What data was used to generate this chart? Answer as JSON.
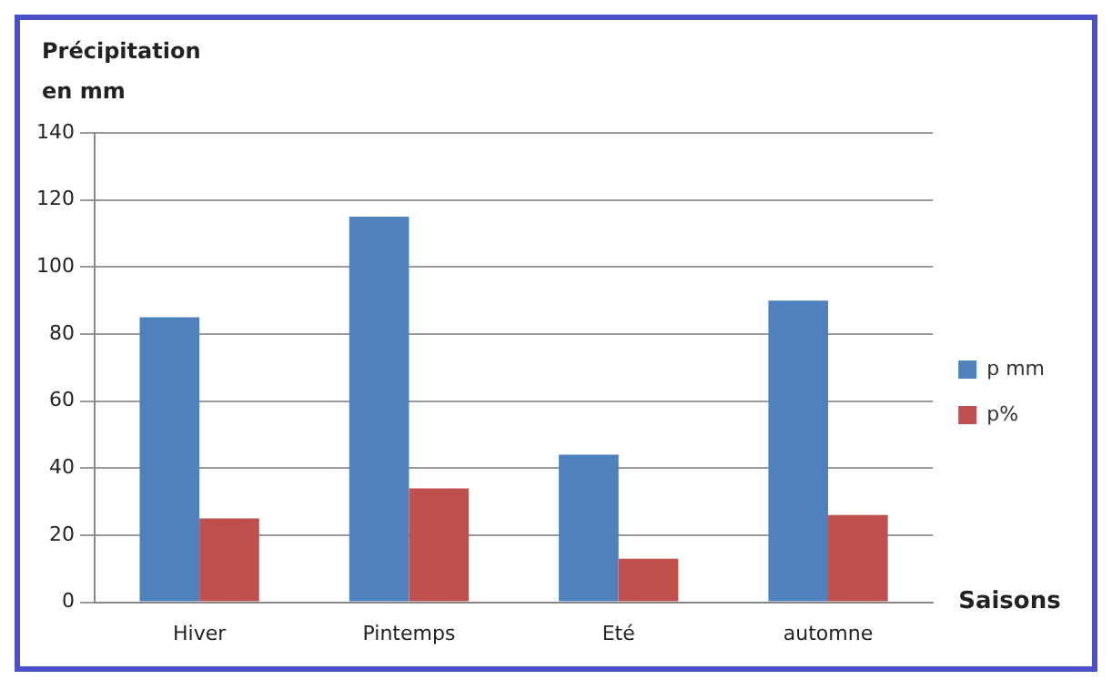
{
  "chart_data": {
    "type": "bar",
    "ylabel": "Précipitation en mm",
    "xlabel": "Saisons",
    "categories": [
      "Hiver",
      "Pintemps",
      "Eté",
      "automne"
    ],
    "series": [
      {
        "name": "p mm",
        "color": "#4f81bd",
        "values": [
          85,
          115,
          44,
          90
        ]
      },
      {
        "name": "p%",
        "color": "#c0504d",
        "values": [
          25,
          34,
          13,
          26
        ]
      }
    ],
    "ylim": [
      0,
      140
    ],
    "yticks": [
      0,
      20,
      40,
      60,
      80,
      100,
      120,
      140
    ],
    "grid": "y",
    "legend": "right"
  }
}
